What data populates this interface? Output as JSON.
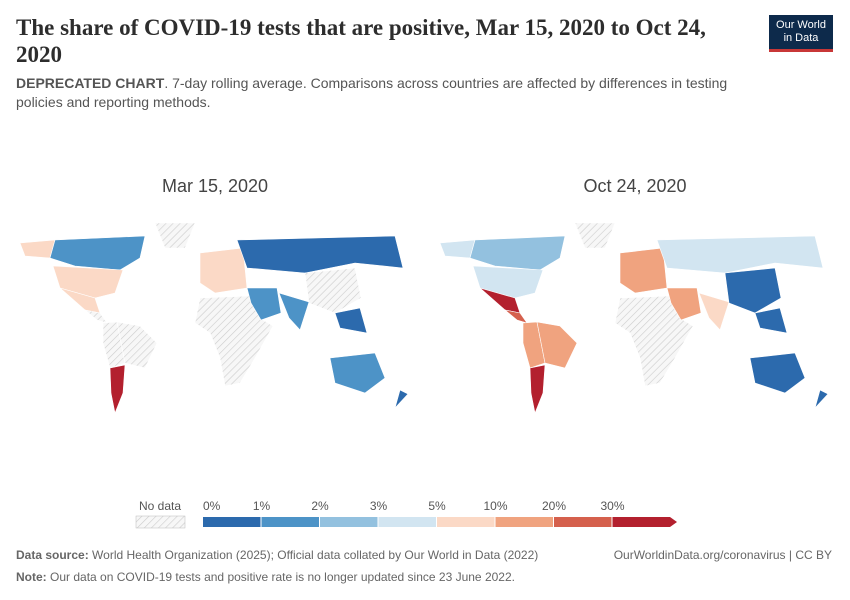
{
  "header": {
    "title": "The share of COVID-19 tests that are positive, Mar 15, 2020 to Oct 24, 2020",
    "subtitle_bold": "DEPRECATED CHART",
    "subtitle": ". 7-day rolling average. Comparisons across countries are affected by differences in testing policies and reporting methods.",
    "logo": [
      "Our World",
      "in Data"
    ]
  },
  "maps": [
    {
      "title": "Mar 15, 2020"
    },
    {
      "title": "Oct 24, 2020"
    }
  ],
  "legend": {
    "no_data": "No data",
    "labels": [
      "0%",
      "1%",
      "2%",
      "3%",
      "5%",
      "10%",
      "20%",
      "30%"
    ],
    "colors": [
      "#2c6aad",
      "#4d93c7",
      "#93c1df",
      "#d2e5f1",
      "#fbd9c6",
      "#f0a37f",
      "#d5604d",
      "#b3202e"
    ]
  },
  "footer": {
    "source_label": "Data source:",
    "source": "World Health Organization (2025); Official data collated by Our World in Data (2022)",
    "url": "OurWorldinData.org/coronavirus | CC BY",
    "note_label": "Note:",
    "note": "Our data on COVID-19 tests and positive rate is no longer updated since 23 June 2022."
  }
}
